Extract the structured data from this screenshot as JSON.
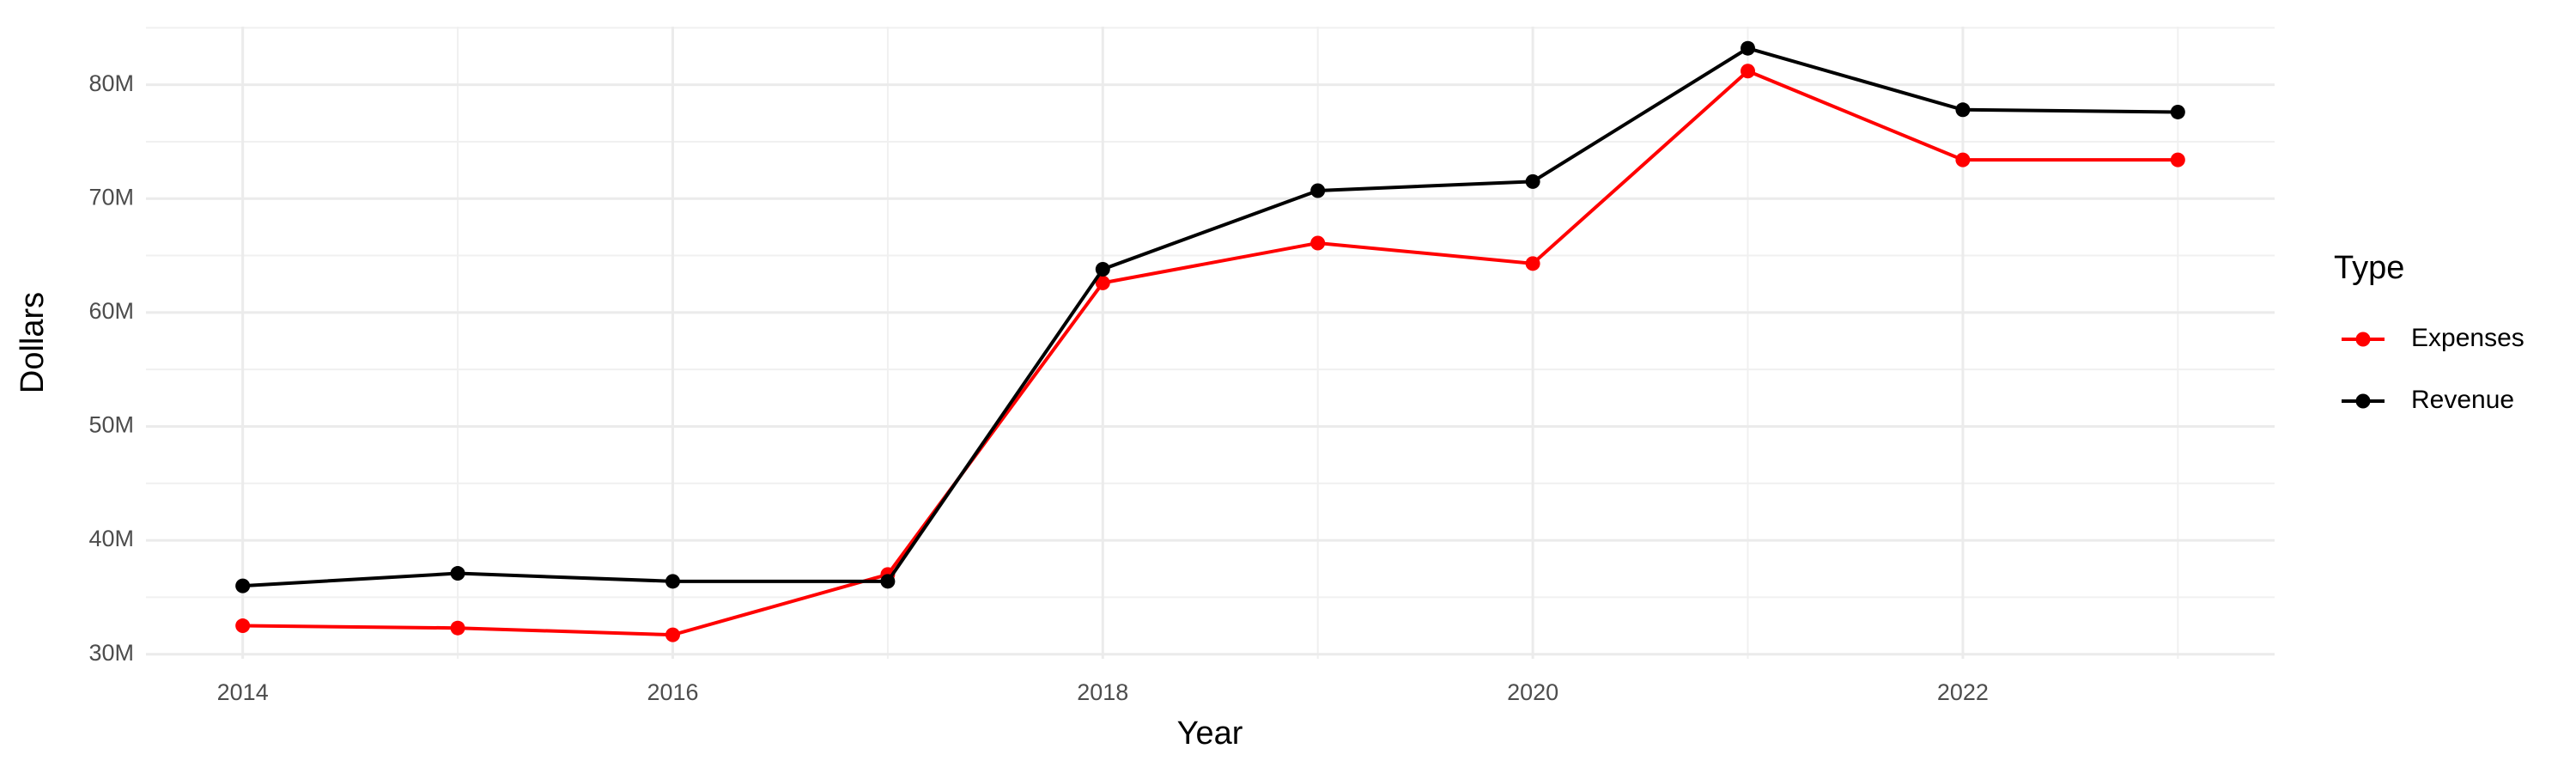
{
  "chart_data": {
    "type": "line",
    "x_label": "Year",
    "y_label": "Dollars",
    "x": [
      2014,
      2015,
      2016,
      2017,
      2018,
      2019,
      2020,
      2021,
      2022,
      2023
    ],
    "series": [
      {
        "name": "Expenses",
        "color": "#ff0000",
        "values": [
          32500000,
          32300000,
          31700000,
          37000000,
          62600000,
          66100000,
          64300000,
          81200000,
          73400000,
          73400000
        ]
      },
      {
        "name": "Revenue",
        "color": "#000000",
        "values": [
          36000000,
          37100000,
          36400000,
          36400000,
          63800000,
          70700000,
          71500000,
          83200000,
          77800000,
          77600000
        ]
      }
    ],
    "xlim": [
      2013.55,
      2023.45
    ],
    "xticks": [
      2014,
      2016,
      2018,
      2020,
      2022
    ],
    "ylim": [
      29600000,
      85100000
    ],
    "yticks": [
      {
        "value": 30000000,
        "label": "30M"
      },
      {
        "value": 40000000,
        "label": "40M"
      },
      {
        "value": 50000000,
        "label": "50M"
      },
      {
        "value": 60000000,
        "label": "60M"
      },
      {
        "value": 70000000,
        "label": "70M"
      },
      {
        "value": 80000000,
        "label": "80M"
      }
    ],
    "grid": true,
    "legend_title": "Type",
    "legend_position": "right"
  }
}
